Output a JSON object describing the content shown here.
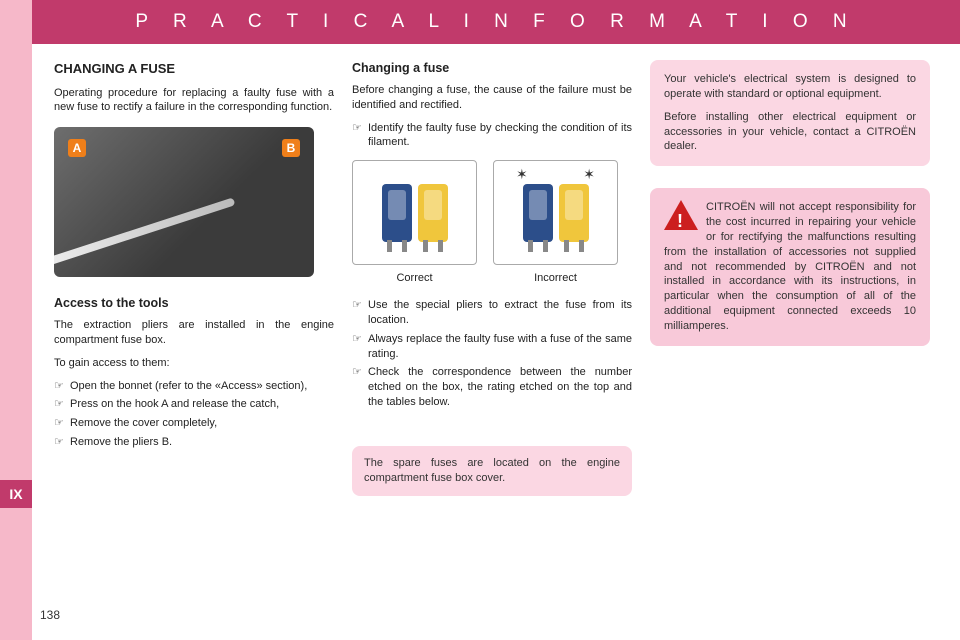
{
  "page": {
    "header": "P R A C T I C A L   I N F O R M A T I O N",
    "section_tab": "IX",
    "number": "138"
  },
  "left": {
    "title": "CHANGING A FUSE",
    "intro": "Operating procedure for replacing a faulty fuse with a new fuse to rectify a failure in the corresponding function.",
    "photo": {
      "label_a": "A",
      "label_b": "B"
    },
    "access_title": "Access to the tools",
    "access_para1": "The extraction pliers are installed in the engine compartment fuse box.",
    "access_para2": "To gain access to them:",
    "bullets": [
      "Open the bonnet (refer to the «Access» section),",
      "Press on the hook A and release the catch,",
      "Remove the cover completely,",
      "Remove the pliers B."
    ]
  },
  "mid": {
    "title": "Changing a fuse",
    "para1": "Before changing a fuse, the cause of the failure must be identified and rectified.",
    "bullet1": "Identify the faulty fuse by checking the condition of its filament.",
    "caption_ok": "Correct",
    "caption_bad": "Incorrect",
    "bullets2": [
      "Use the special pliers to extract the fuse from its location.",
      "Always replace the faulty fuse with a fuse of the same rating.",
      "Check the correspondence between the number etched on the box, the rating etched on the top and the tables below."
    ],
    "spare_note": "The spare fuses are located on the engine compartment fuse box cover."
  },
  "right": {
    "info1_a": "Your vehicle's electrical system is designed to operate with standard or optional equipment.",
    "info1_b": "Before installing other electrical equipment or accessories in your vehicle, contact a CITROËN dealer.",
    "warn": "CITROËN will not accept responsibility for the cost incurred in repairing your vehicle or for rectifying the malfunctions resulting from the installation of accessories not supplied and not recommended by CITROËN and not installed in accordance with its instructions, in particular when the consumption of all of the additional equipment connected exceeds 10 milliamperes."
  },
  "colors": {
    "brand": "#c13a6b",
    "strip": "#f6b8c9",
    "box": "#fbd7e3",
    "warn_box": "#f8c9d9",
    "warn_triangle": "#cc1f1f",
    "orange_label": "#ef7f1a",
    "fuse_blue": "#2c4e8a",
    "fuse_yellow": "#f0c63c"
  }
}
